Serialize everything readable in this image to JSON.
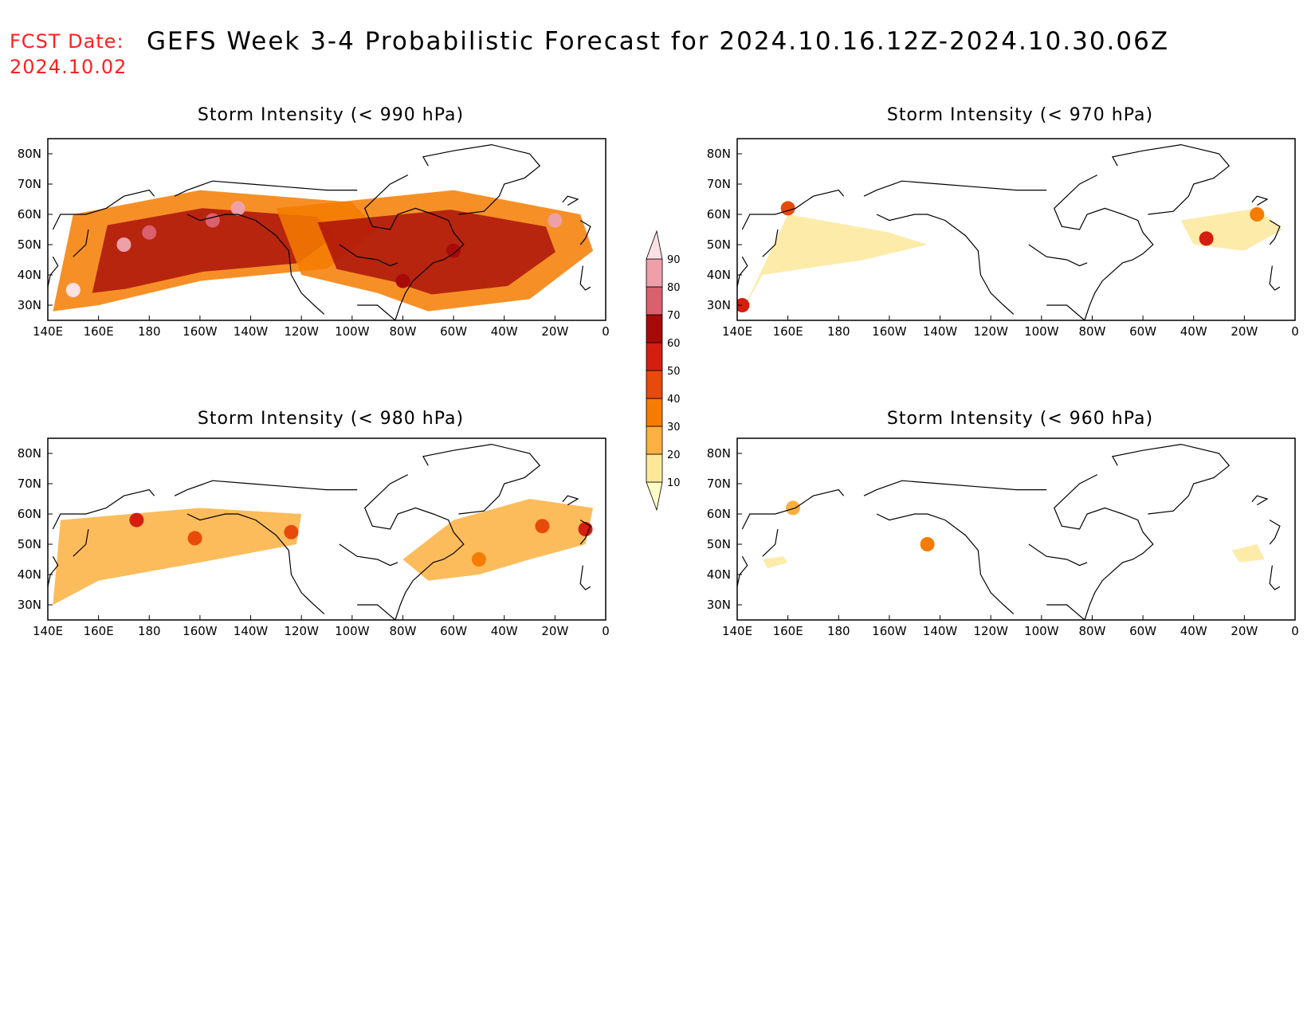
{
  "header": {
    "fcst_label": "FCST Date:",
    "fcst_date": "2024.10.02",
    "title": "GEFS Week 3-4 Probabilistic Forecast for 2024.10.16.12Z-2024.10.30.06Z"
  },
  "panels": [
    {
      "id": "p990",
      "title": "Storm Intensity (< 990 hPa)"
    },
    {
      "id": "p970",
      "title": "Storm Intensity (< 970 hPa)"
    },
    {
      "id": "p980",
      "title": "Storm Intensity (< 980 hPa)"
    },
    {
      "id": "p960",
      "title": "Storm Intensity (< 960 hPa)"
    }
  ],
  "axes": {
    "lon_ticks": [
      "140E",
      "160E",
      "180",
      "160W",
      "140W",
      "120W",
      "100W",
      "80W",
      "60W",
      "40W",
      "20W",
      "0"
    ],
    "lat_ticks": [
      "30N",
      "40N",
      "50N",
      "60N",
      "70N",
      "80N"
    ],
    "lon_range_deg_east": [
      140,
      360
    ],
    "lat_range_deg_north": [
      25,
      85
    ]
  },
  "colorbar": {
    "levels": [
      10,
      20,
      30,
      40,
      50,
      60,
      70,
      80,
      90
    ],
    "colors": [
      "#fffcc8",
      "#fde89a",
      "#fbb040",
      "#f57c00",
      "#e84a0c",
      "#d41e10",
      "#a80a0a",
      "#d9606c",
      "#eda0a8",
      "#fbe0e4"
    ]
  },
  "regions": {
    "p990": [
      [
        [
          150,
          60
        ],
        [
          200,
          68
        ],
        [
          260,
          64
        ],
        [
          270,
          55
        ],
        [
          250,
          42
        ],
        [
          200,
          38
        ],
        [
          160,
          30
        ],
        [
          142,
          28
        ]
      ],
      [
        [
          230,
          62
        ],
        [
          300,
          68
        ],
        [
          350,
          60
        ],
        [
          355,
          48
        ],
        [
          330,
          32
        ],
        [
          290,
          28
        ],
        [
          270,
          34
        ],
        [
          240,
          40
        ]
      ]
    ],
    "p980": [
      [
        [
          145,
          58
        ],
        [
          200,
          62
        ],
        [
          240,
          60
        ],
        [
          238,
          50
        ],
        [
          200,
          44
        ],
        [
          160,
          38
        ],
        [
          142,
          30
        ]
      ],
      [
        [
          300,
          58
        ],
        [
          330,
          65
        ],
        [
          355,
          62
        ],
        [
          352,
          50
        ],
        [
          330,
          45
        ],
        [
          310,
          40
        ],
        [
          290,
          38
        ],
        [
          280,
          45
        ]
      ]
    ],
    "p970": [
      [
        [
          142,
          28
        ],
        [
          160,
          60
        ],
        [
          200,
          54
        ],
        [
          215,
          50
        ],
        [
          190,
          45
        ],
        [
          150,
          40
        ]
      ],
      [
        [
          315,
          58
        ],
        [
          345,
          62
        ],
        [
          355,
          55
        ],
        [
          340,
          48
        ],
        [
          320,
          50
        ]
      ]
    ],
    "p960": [
      [
        [
          150,
          45
        ],
        [
          158,
          46
        ],
        [
          160,
          44
        ],
        [
          152,
          42
        ]
      ],
      [
        [
          335,
          48
        ],
        [
          345,
          50
        ],
        [
          348,
          45
        ],
        [
          338,
          44
        ]
      ]
    ]
  },
  "hotspots": {
    "p990": [
      [
        180,
        54,
        70
      ],
      [
        170,
        50,
        80
      ],
      [
        205,
        58,
        70
      ],
      [
        280,
        38,
        60
      ],
      [
        340,
        58,
        80
      ],
      [
        300,
        48,
        60
      ],
      [
        150,
        35,
        90
      ],
      [
        215,
        62,
        80
      ]
    ],
    "p980": [
      [
        175,
        58,
        50
      ],
      [
        198,
        52,
        40
      ],
      [
        335,
        56,
        40
      ],
      [
        352,
        55,
        50
      ],
      [
        310,
        45,
        30
      ],
      [
        236,
        54,
        40
      ]
    ],
    "p970": [
      [
        142,
        30,
        50
      ],
      [
        160,
        62,
        40
      ],
      [
        325,
        52,
        50
      ],
      [
        345,
        60,
        30
      ]
    ],
    "p960": [
      [
        215,
        50,
        30
      ],
      [
        162,
        62,
        20
      ]
    ]
  }
}
